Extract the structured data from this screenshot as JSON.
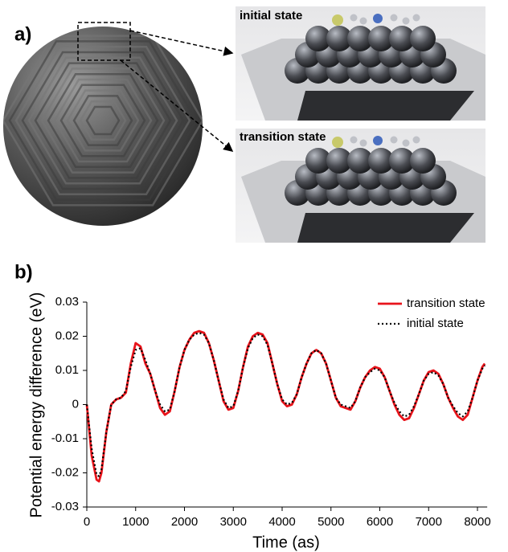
{
  "panel_a": {
    "label": "a)",
    "inset_top": "initial state",
    "inset_bottom": "transition state"
  },
  "chart_data": {
    "type": "line",
    "panel_label": "b)",
    "x_label": "Time (as)",
    "y_label": "Potential energy difference (eV)",
    "xlim": [
      0,
      8200
    ],
    "xticks": [
      0,
      1000,
      2000,
      3000,
      4000,
      5000,
      6000,
      7000,
      8000
    ],
    "ylim": [
      -0.03,
      0.03
    ],
    "yticks": [
      0.03,
      0.02,
      0.01,
      0,
      -0.01,
      -0.02,
      -0.03
    ],
    "grid": false,
    "legend": "upper right",
    "x": [
      0,
      100,
      200,
      250,
      300,
      400,
      500,
      600,
      700,
      800,
      900,
      1000,
      1100,
      1200,
      1300,
      1400,
      1500,
      1600,
      1700,
      1800,
      1900,
      2000,
      2100,
      2200,
      2300,
      2400,
      2500,
      2600,
      2700,
      2800,
      2900,
      3000,
      3100,
      3200,
      3300,
      3400,
      3500,
      3600,
      3700,
      3800,
      3900,
      4000,
      4100,
      4200,
      4300,
      4400,
      4500,
      4600,
      4700,
      4800,
      4900,
      5000,
      5100,
      5200,
      5300,
      5400,
      5500,
      5600,
      5700,
      5800,
      5900,
      6000,
      6100,
      6200,
      6300,
      6400,
      6500,
      6600,
      6700,
      6800,
      6900,
      7000,
      7100,
      7200,
      7300,
      7400,
      7500,
      7600,
      7700,
      7800,
      7900,
      8000,
      8100,
      8150
    ],
    "series": [
      {
        "name": "transition state",
        "color": "#e8141b",
        "style": "solid",
        "values": [
          0,
          -0.015,
          -0.022,
          -0.0225,
          -0.02,
          -0.008,
          0,
          0.0015,
          0.002,
          0.0035,
          0.012,
          0.018,
          0.017,
          0.012,
          0.009,
          0.004,
          -0.001,
          -0.003,
          -0.002,
          0.004,
          0.011,
          0.016,
          0.019,
          0.021,
          0.0215,
          0.021,
          0.018,
          0.013,
          0.007,
          0.001,
          -0.0015,
          -0.001,
          0.004,
          0.011,
          0.017,
          0.02,
          0.021,
          0.0205,
          0.018,
          0.012,
          0.006,
          0.001,
          -0.0005,
          0,
          0.003,
          0.008,
          0.012,
          0.015,
          0.016,
          0.015,
          0.012,
          0.007,
          0.002,
          -0.0005,
          -0.001,
          -0.0015,
          0.001,
          0.005,
          0.008,
          0.01,
          0.011,
          0.0105,
          0.008,
          0.004,
          0,
          -0.003,
          -0.0045,
          -0.004,
          -0.001,
          0.003,
          0.007,
          0.0095,
          0.01,
          0.009,
          0.006,
          0.002,
          -0.001,
          -0.0035,
          -0.0045,
          -0.003,
          0.002,
          0.007,
          0.011,
          0.012
        ]
      },
      {
        "name": "initial state",
        "color": "#000000",
        "style": "dotted",
        "values": [
          0,
          -0.013,
          -0.0205,
          -0.021,
          -0.019,
          -0.008,
          0,
          0.0015,
          0.002,
          0.004,
          0.011,
          0.016,
          0.0165,
          0.013,
          0.009,
          0.004,
          0,
          -0.002,
          -0.0015,
          0.004,
          0.011,
          0.016,
          0.019,
          0.0205,
          0.021,
          0.0205,
          0.018,
          0.013,
          0.007,
          0.0015,
          -0.001,
          -0.0005,
          0.004,
          0.011,
          0.0165,
          0.0195,
          0.0205,
          0.02,
          0.0175,
          0.012,
          0.006,
          0.0015,
          0,
          0.0005,
          0.003,
          0.008,
          0.012,
          0.015,
          0.016,
          0.015,
          0.012,
          0.007,
          0.002,
          0,
          -0.0005,
          -0.001,
          0.001,
          0.005,
          0.008,
          0.0095,
          0.0105,
          0.01,
          0.008,
          0.004,
          0.0005,
          -0.002,
          -0.0035,
          -0.003,
          -0.0005,
          0.003,
          0.007,
          0.009,
          0.0095,
          0.0085,
          0.006,
          0.002,
          -0.0005,
          -0.0025,
          -0.0035,
          -0.002,
          0.002,
          0.007,
          0.0105,
          0.0115
        ]
      }
    ]
  }
}
